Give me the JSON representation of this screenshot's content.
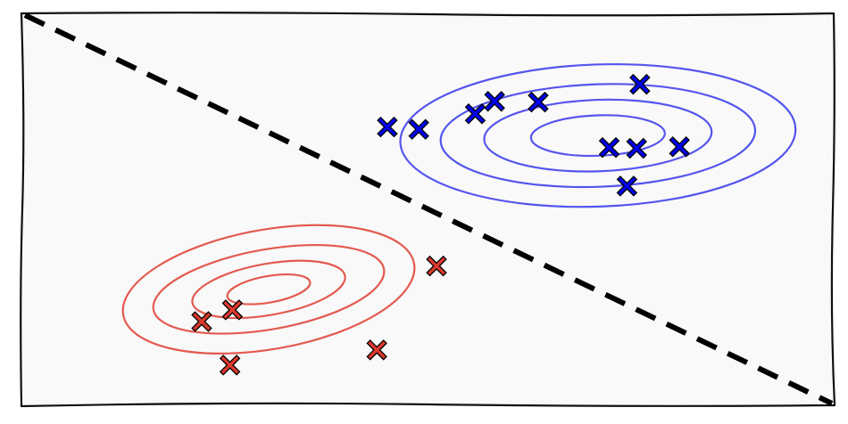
{
  "chart_data": {
    "type": "scatter",
    "title": "",
    "xlabel": "",
    "ylabel": "",
    "xlim": [
      0,
      100
    ],
    "ylim": [
      0,
      100
    ],
    "grid": false,
    "legend": "none",
    "series": [
      {
        "color": "#0000ee",
        "marker": "x",
        "points": [
          [
            44.9,
            71.2
          ],
          [
            48.8,
            70.6
          ],
          [
            55.8,
            74.6
          ],
          [
            58.2,
            77.8
          ],
          [
            63.6,
            77.6
          ],
          [
            76.2,
            82.2
          ],
          [
            72.4,
            65.9
          ],
          [
            75.8,
            65.7
          ],
          [
            81.1,
            66.1
          ],
          [
            74.6,
            56.0
          ]
        ]
      },
      {
        "color": "#dd3a2e",
        "marker": "x",
        "points": [
          [
            25.7,
            24.1
          ],
          [
            21.9,
            21.1
          ],
          [
            25.4,
            9.9
          ],
          [
            43.6,
            13.8
          ],
          [
            51.0,
            35.4
          ]
        ]
      }
    ],
    "density_contours": [
      {
        "color": "#5555ee",
        "center": [
          71.0,
          69.0
        ],
        "rx": [
          8.3,
          14.1,
          19.5,
          24.5
        ],
        "ry": [
          5.2,
          9.2,
          13.2,
          18.3
        ],
        "angle_deg": 2
      },
      {
        "color": "#e35a4f",
        "center": [
          30.2,
          29.4
        ],
        "rx": [
          5.2,
          9.6,
          14.5,
          18.3
        ],
        "ry": [
          3.4,
          6.6,
          10.3,
          15.4
        ],
        "angle_deg": 10
      }
    ],
    "decision_boundary": {
      "style": "dashed",
      "color": "#000000",
      "points": [
        [
          0,
          100
        ],
        [
          100,
          0
        ]
      ]
    }
  }
}
